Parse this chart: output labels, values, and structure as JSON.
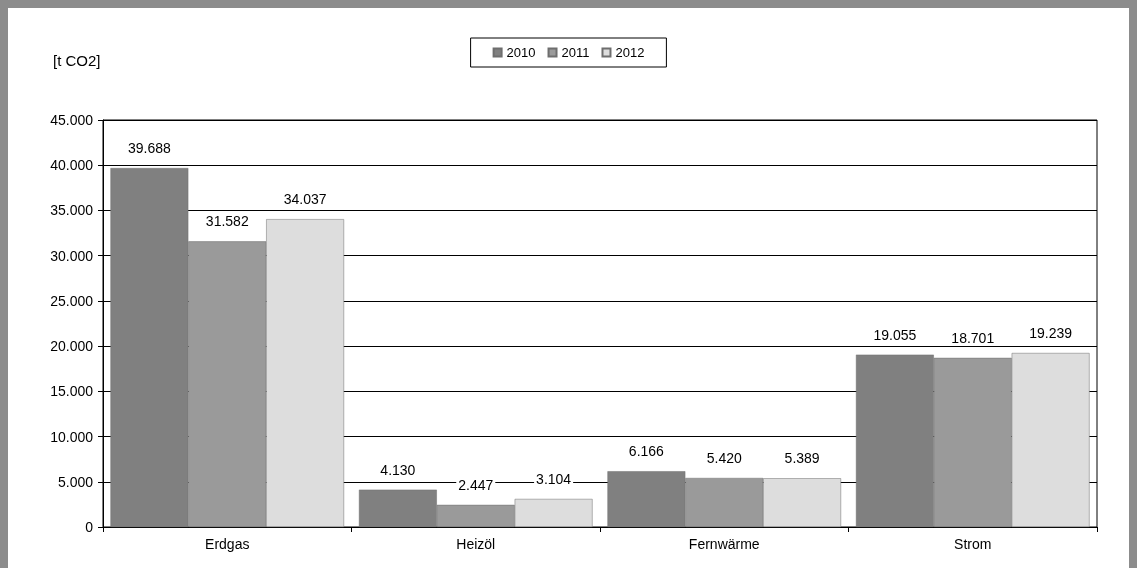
{
  "chart_data": {
    "type": "bar",
    "ylabel": "[t CO2]",
    "categories": [
      "Erdgas",
      "Heizöl",
      "Fernwärme",
      "Strom"
    ],
    "series": [
      {
        "name": "2010",
        "color": "#808080",
        "values": [
          39688,
          4130,
          6166,
          19055
        ],
        "value_labels": [
          "39.688",
          "4.130",
          "6.166",
          "19.055"
        ]
      },
      {
        "name": "2011",
        "color": "#9a9a9a",
        "values": [
          31582,
          2447,
          5420,
          18701
        ],
        "value_labels": [
          "31.582",
          "2.447",
          "5.420",
          "18.701"
        ]
      },
      {
        "name": "2012",
        "color": "#dddddd",
        "values": [
          34037,
          3104,
          5389,
          19239
        ],
        "value_labels": [
          "34.037",
          "3.104",
          "5.389",
          "19.239"
        ]
      }
    ],
    "ylim": [
      0,
      45000
    ],
    "yticks": [
      0,
      {
        "value": 5000,
        "label": "5.000"
      },
      {
        "value": 10000,
        "label": "10.000"
      },
      {
        "value": 15000,
        "label": "15.000"
      },
      {
        "value": 20000,
        "label": "20.000"
      },
      {
        "value": 25000,
        "label": "25.000"
      },
      {
        "value": 30000,
        "label": "30.000"
      },
      {
        "value": 35000,
        "label": "35.000"
      },
      {
        "value": 40000,
        "label": "40.000"
      },
      {
        "value": 45000,
        "label": "45.000"
      }
    ],
    "grid": "y",
    "legend": "top"
  }
}
